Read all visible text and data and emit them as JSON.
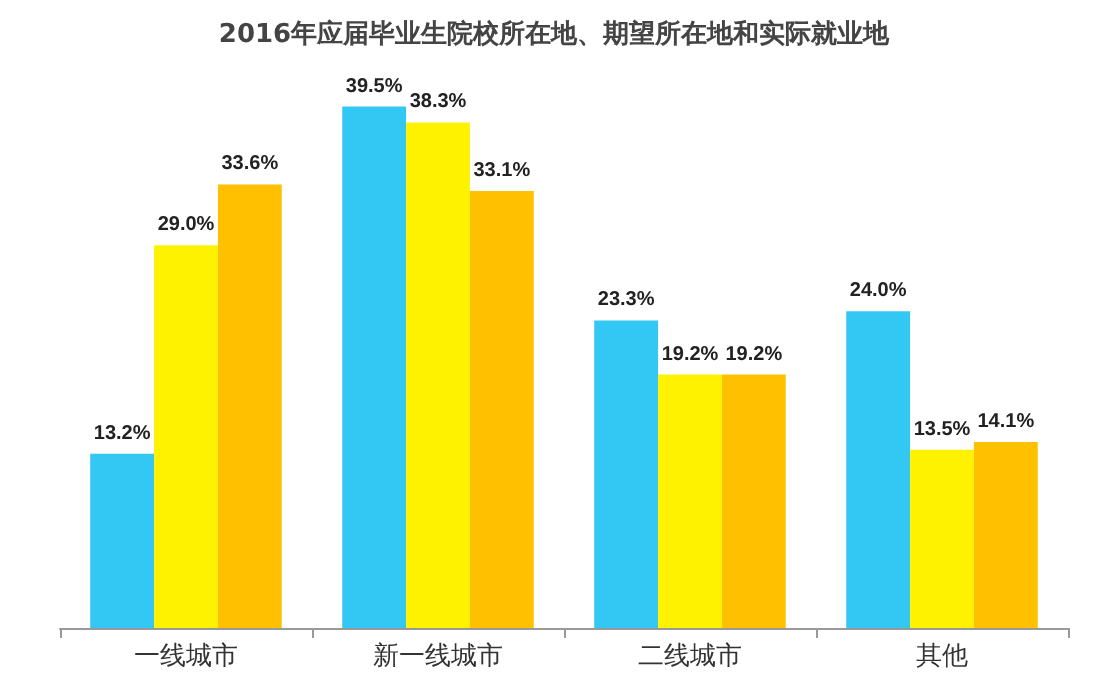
{
  "chart_data": {
    "type": "bar",
    "title": "2016年应届毕业生院校所在地、期望所在地和实际就业地",
    "categories": [
      "一线城市",
      "新一线城市",
      "二线城市",
      "其他"
    ],
    "series": [
      {
        "color": "#33c7f4",
        "values": [
          13.2,
          39.5,
          23.3,
          24.0
        ],
        "value_labels": [
          "13.2%",
          "39.5%",
          "23.3%",
          "24.0%"
        ]
      },
      {
        "color": "#fff200",
        "values": [
          29.0,
          38.3,
          19.2,
          13.5
        ],
        "value_labels": [
          "29.0%",
          "38.3%",
          "19.2%",
          "13.5%"
        ]
      },
      {
        "color": "#ffc000",
        "values": [
          33.6,
          33.1,
          19.2,
          14.1
        ],
        "value_labels": [
          "33.6%",
          "33.1%",
          "19.2%",
          "14.1%"
        ]
      }
    ],
    "grid": false
  }
}
